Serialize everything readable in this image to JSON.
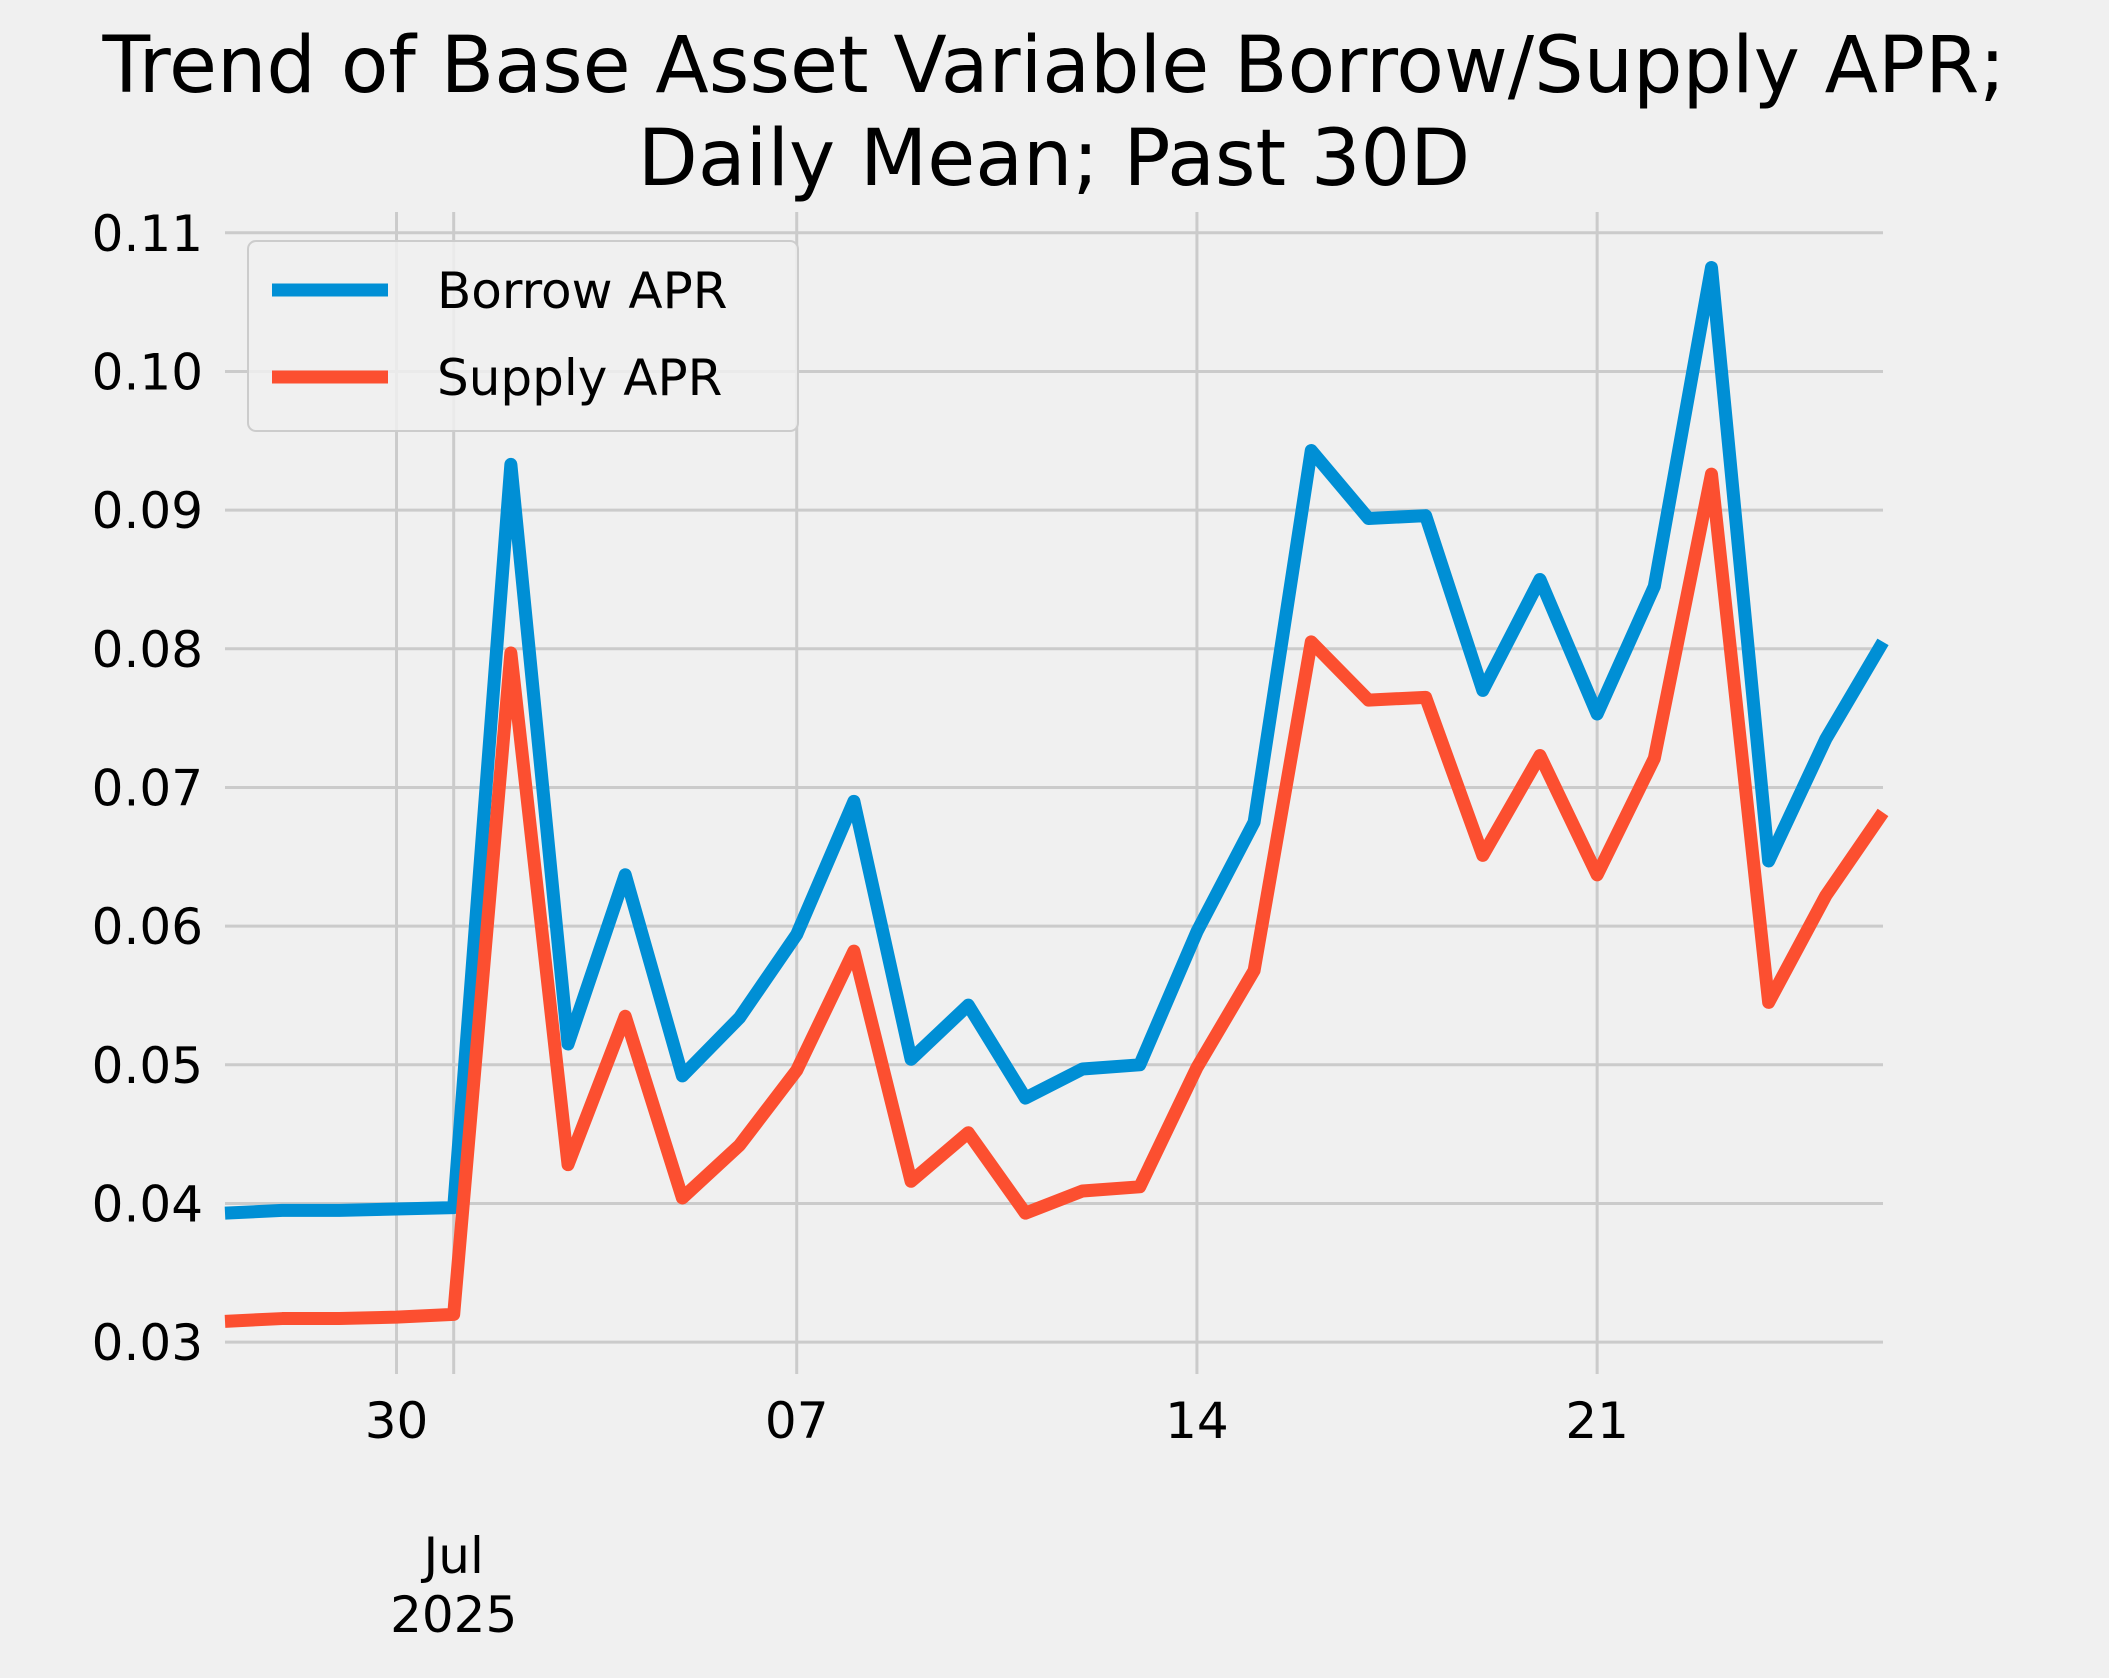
{
  "chart_data": {
    "type": "line",
    "title_lines": [
      "Trend of Base Asset Variable Borrow/Supply APR;",
      "Daily Mean; Past 30D"
    ],
    "x": [
      "2025-06-27",
      "2025-06-28",
      "2025-06-29",
      "2025-06-30",
      "2025-07-01",
      "2025-07-02",
      "2025-07-03",
      "2025-07-04",
      "2025-07-05",
      "2025-07-06",
      "2025-07-07",
      "2025-07-08",
      "2025-07-09",
      "2025-07-10",
      "2025-07-11",
      "2025-07-12",
      "2025-07-13",
      "2025-07-14",
      "2025-07-15",
      "2025-07-16",
      "2025-07-17",
      "2025-07-18",
      "2025-07-19",
      "2025-07-20",
      "2025-07-21",
      "2025-07-22",
      "2025-07-23",
      "2025-07-24",
      "2025-07-25",
      "2025-07-26"
    ],
    "series": [
      {
        "name": "Borrow APR",
        "color": "#008fd5",
        "values": [
          0.0393,
          0.0395,
          0.0395,
          0.0396,
          0.0397,
          0.0933,
          0.0515,
          0.0637,
          0.0492,
          0.0534,
          0.0594,
          0.069,
          0.0504,
          0.0543,
          0.0476,
          0.0497,
          0.05,
          0.0596,
          0.0675,
          0.0943,
          0.0894,
          0.0896,
          0.077,
          0.085,
          0.0753,
          0.0845,
          0.1075,
          0.0647,
          0.0735,
          0.0805
        ]
      },
      {
        "name": "Supply APR",
        "color": "#fc4f30",
        "values": [
          0.0315,
          0.0317,
          0.0317,
          0.0318,
          0.032,
          0.0797,
          0.0428,
          0.0535,
          0.0404,
          0.0442,
          0.0496,
          0.0582,
          0.0416,
          0.0451,
          0.0393,
          0.0409,
          0.0412,
          0.0498,
          0.0568,
          0.0805,
          0.0763,
          0.0765,
          0.0651,
          0.0723,
          0.0637,
          0.0721,
          0.0926,
          0.0545,
          0.0622,
          0.0682
        ]
      }
    ],
    "y_ticks": [
      "0.03",
      "0.04",
      "0.05",
      "0.06",
      "0.07",
      "0.08",
      "0.09",
      "0.10",
      "0.11"
    ],
    "x_ticks": [
      {
        "date": "2025-06-30",
        "label": "30",
        "sub": []
      },
      {
        "date": "2025-07-01",
        "label": "",
        "sub": [
          "Jul",
          "2025"
        ]
      },
      {
        "date": "2025-07-07",
        "label": "07",
        "sub": []
      },
      {
        "date": "2025-07-14",
        "label": "14",
        "sub": []
      },
      {
        "date": "2025-07-21",
        "label": "21",
        "sub": []
      }
    ],
    "ylim": [
      0.029,
      0.1115
    ],
    "xlim": [
      "2025-06-27",
      "2025-07-26"
    ],
    "grid": true,
    "legend_position": "upper-left"
  }
}
